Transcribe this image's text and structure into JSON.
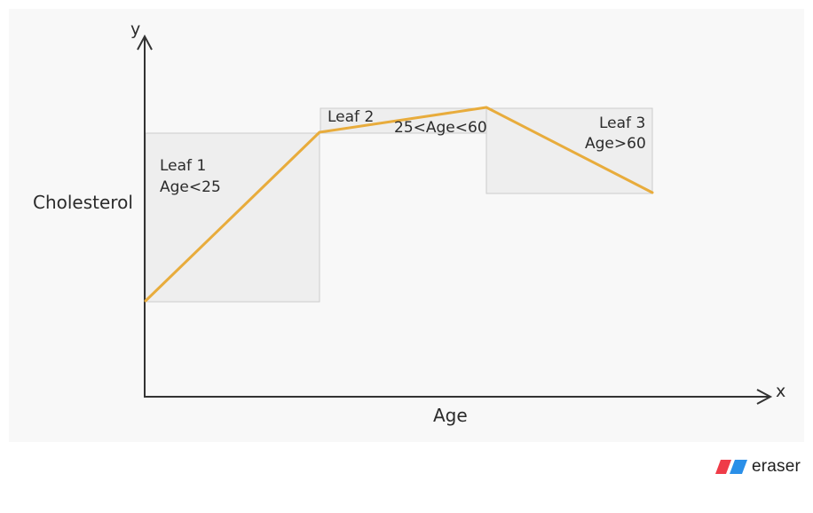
{
  "diagram": {
    "y_axis_letter": "y",
    "x_axis_letter": "x",
    "y_axis_label": "Cholesterol",
    "x_axis_label": "Age",
    "leaves": [
      {
        "line1": "Leaf 1",
        "line2": "Age<25"
      },
      {
        "line1": "Leaf 2",
        "line2": "25<Age<60"
      },
      {
        "line1": "Leaf 3",
        "line2": "Age>60"
      }
    ],
    "colors": {
      "canvas": "#f8f8f8",
      "leaf_fill": "#eeeeee",
      "leaf_border": "#cccccc",
      "trend_line": "#e8ac3c",
      "axis": "#333333"
    }
  },
  "brand": {
    "text": "eraser",
    "logo_icon": "eraser-logo-icon",
    "logo_colors": [
      "#ef3b48",
      "#2a8fe8"
    ]
  }
}
